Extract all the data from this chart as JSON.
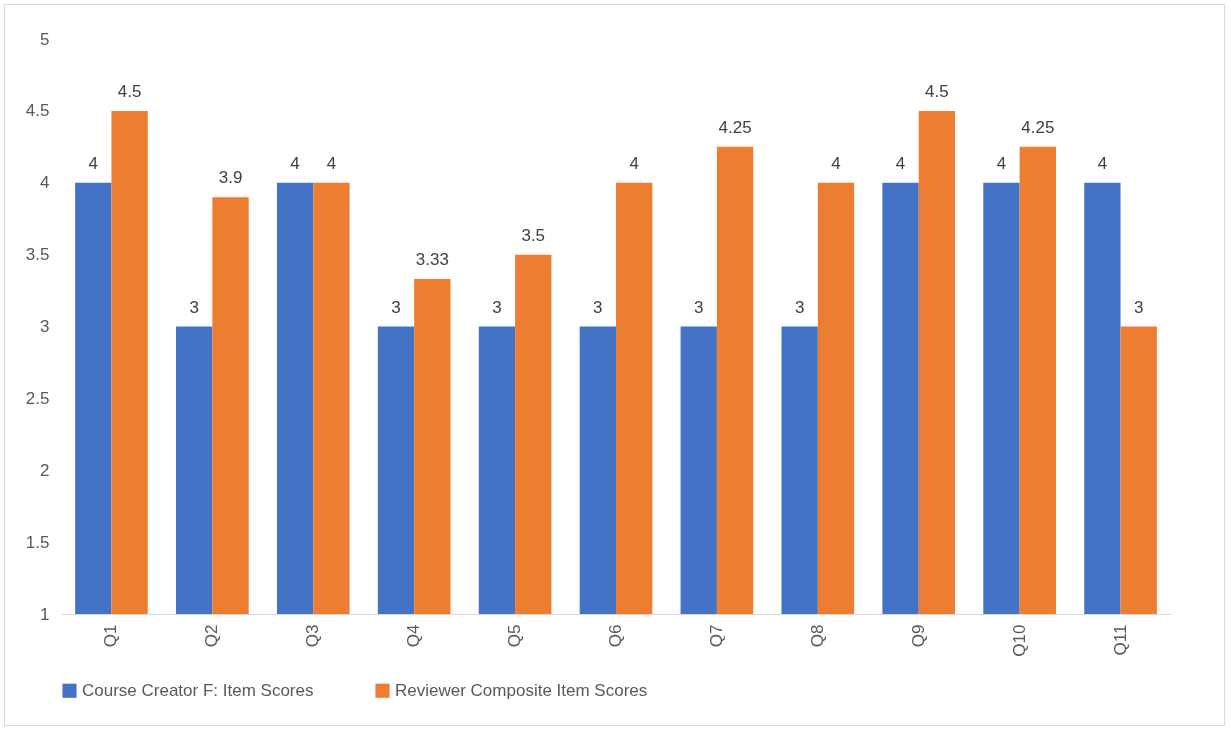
{
  "chart_data": {
    "type": "bar",
    "categories": [
      "Q1",
      "Q2",
      "Q3",
      "Q4",
      "Q5",
      "Q6",
      "Q7",
      "Q8",
      "Q9",
      "Q10",
      "Q11"
    ],
    "series": [
      {
        "name": "Course Creator F: Item Scores",
        "color": "#4472c4",
        "values": [
          4,
          3,
          4,
          3,
          3,
          3,
          3,
          3,
          4,
          4,
          4
        ]
      },
      {
        "name": "Reviewer Composite Item Scores",
        "color": "#ed7d31",
        "values": [
          4.5,
          3.9,
          4,
          3.33,
          3.5,
          4,
          4.25,
          4,
          4.5,
          4.25,
          3
        ]
      }
    ],
    "ylim": [
      1,
      5
    ],
    "yticks": [
      1,
      1.5,
      2,
      2.5,
      3,
      3.5,
      4,
      4.5,
      5
    ],
    "grid": false,
    "legend": "bottom",
    "data_labels": true
  }
}
